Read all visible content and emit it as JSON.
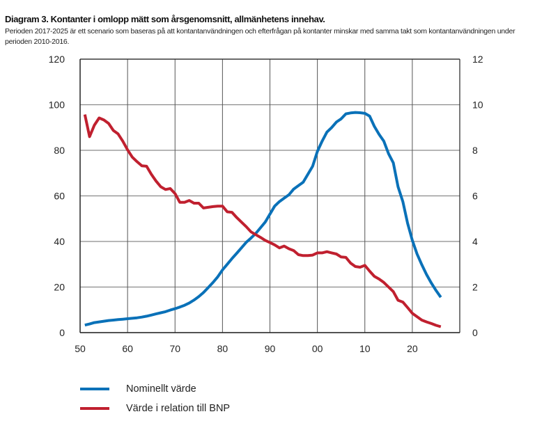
{
  "chart_data": {
    "type": "line",
    "title": "Diagram 3. Kontanter i omlopp mätt som årsgenomsnitt, allmänhetens innehav.",
    "subtitle": "Perioden 2017-2025 är ett scenario som baseras på att kontantanvändningen och efterfrågan på kontanter minskar med samma takt som kontantanvändningen under perioden 2010-2016.",
    "xlabel": "",
    "ylabel_left": "",
    "ylabel_right": "",
    "xlim": [
      1950,
      2030
    ],
    "ylim_left": [
      0,
      120
    ],
    "ylim_right": [
      0,
      12
    ],
    "x_ticks": [
      1950,
      1960,
      1970,
      1980,
      1990,
      2000,
      2010,
      2020
    ],
    "x_tick_labels": [
      "50",
      "60",
      "70",
      "80",
      "90",
      "00",
      "10",
      "20"
    ],
    "y_left_ticks": [
      0,
      20,
      40,
      60,
      80,
      100,
      120
    ],
    "y_left_tick_labels": [
      "0",
      "20",
      "40",
      "60",
      "80",
      "100",
      "120"
    ],
    "y_right_ticks": [
      0,
      2,
      4,
      6,
      8,
      10,
      12
    ],
    "y_right_tick_labels": [
      "0",
      "2",
      "4",
      "6",
      "8",
      "10",
      "12"
    ],
    "grid": true,
    "legend_position": "bottom-left",
    "x": [
      1951,
      1952,
      1953,
      1954,
      1955,
      1956,
      1957,
      1958,
      1959,
      1960,
      1961,
      1962,
      1963,
      1964,
      1965,
      1966,
      1967,
      1968,
      1969,
      1970,
      1971,
      1972,
      1973,
      1974,
      1975,
      1976,
      1977,
      1978,
      1979,
      1980,
      1981,
      1982,
      1983,
      1984,
      1985,
      1986,
      1987,
      1988,
      1989,
      1990,
      1991,
      1992,
      1993,
      1994,
      1995,
      1996,
      1997,
      1998,
      1999,
      2000,
      2001,
      2002,
      2003,
      2004,
      2005,
      2006,
      2007,
      2008,
      2009,
      2010,
      2011,
      2012,
      2013,
      2014,
      2015,
      2016,
      2017,
      2018,
      2019,
      2020,
      2021,
      2022,
      2023,
      2024,
      2025,
      2026
    ],
    "series": [
      {
        "name": "Nominellt värde",
        "axis": "left",
        "color": "#0a71b8",
        "values": [
          3.3,
          3.8,
          4.4,
          4.7,
          5.0,
          5.3,
          5.5,
          5.7,
          5.9,
          6.1,
          6.3,
          6.5,
          6.8,
          7.2,
          7.7,
          8.2,
          8.7,
          9.2,
          9.9,
          10.5,
          11.2,
          12.0,
          13.0,
          14.3,
          15.8,
          17.6,
          19.8,
          22.0,
          24.5,
          27.5,
          30.0,
          32.5,
          34.8,
          37.2,
          39.6,
          41.5,
          43.5,
          46.0,
          48.5,
          52.0,
          55.5,
          57.5,
          59.0,
          60.5,
          63.0,
          64.5,
          66.0,
          69.5,
          73.0,
          79.5,
          84.0,
          88.0,
          90.0,
          92.4,
          93.8,
          96.0,
          96.4,
          96.6,
          96.5,
          96.2,
          95.0,
          90.5,
          87.0,
          84.0,
          78.5,
          74.5,
          64.0,
          57.5,
          48.0,
          40.5,
          34.5,
          29.8,
          25.5,
          21.8,
          18.5,
          15.5
        ]
      },
      {
        "name": "Värde i relation till BNP",
        "axis": "right",
        "color": "#c0202f",
        "values": [
          9.57,
          8.6,
          9.1,
          9.42,
          9.33,
          9.18,
          8.87,
          8.72,
          8.4,
          8.02,
          7.7,
          7.5,
          7.32,
          7.3,
          6.95,
          6.65,
          6.4,
          6.28,
          6.32,
          6.1,
          5.72,
          5.72,
          5.8,
          5.68,
          5.68,
          5.47,
          5.5,
          5.53,
          5.55,
          5.55,
          5.3,
          5.28,
          5.05,
          4.85,
          4.65,
          4.42,
          4.3,
          4.18,
          4.05,
          3.95,
          3.85,
          3.72,
          3.8,
          3.68,
          3.6,
          3.42,
          3.38,
          3.38,
          3.4,
          3.5,
          3.5,
          3.55,
          3.5,
          3.45,
          3.32,
          3.3,
          3.05,
          2.9,
          2.87,
          2.95,
          2.7,
          2.47,
          2.35,
          2.2,
          2.0,
          1.8,
          1.42,
          1.34,
          1.1,
          0.85,
          0.7,
          0.55,
          0.47,
          0.4,
          0.32,
          0.26
        ]
      }
    ]
  }
}
